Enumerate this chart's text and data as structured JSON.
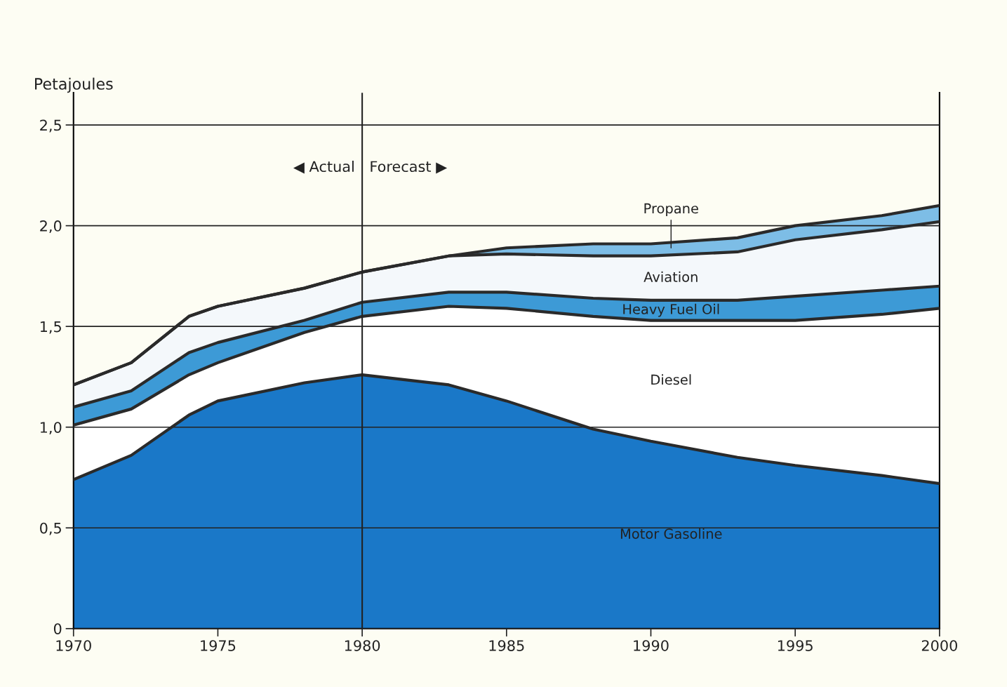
{
  "chart_data": {
    "type": "area",
    "stacked": true,
    "ylabel": "Petajoules",
    "x": [
      1970,
      1972,
      1974,
      1975,
      1978,
      1980,
      1983,
      1985,
      1988,
      1990,
      1993,
      1995,
      1998,
      2000
    ],
    "series": [
      {
        "name": "Motor Gasoline",
        "color": "#1a78c8",
        "values": [
          0.74,
          0.86,
          1.06,
          1.13,
          1.22,
          1.26,
          1.21,
          1.13,
          0.99,
          0.93,
          0.85,
          0.81,
          0.76,
          0.72
        ]
      },
      {
        "name": "Diesel",
        "color": "#ffffff",
        "values": [
          0.27,
          0.23,
          0.2,
          0.19,
          0.25,
          0.29,
          0.39,
          0.46,
          0.56,
          0.6,
          0.68,
          0.72,
          0.8,
          0.87
        ]
      },
      {
        "name": "Heavy Fuel Oil",
        "color": "#3d9ad6",
        "values": [
          0.09,
          0.09,
          0.11,
          0.1,
          0.06,
          0.07,
          0.07,
          0.08,
          0.09,
          0.1,
          0.1,
          0.12,
          0.12,
          0.11
        ]
      },
      {
        "name": "Aviation",
        "color": "#f4f8fb",
        "values": [
          0.11,
          0.14,
          0.18,
          0.18,
          0.16,
          0.15,
          0.18,
          0.19,
          0.21,
          0.22,
          0.24,
          0.28,
          0.3,
          0.32
        ]
      },
      {
        "name": "Propane",
        "color": "#7dbde6",
        "values": [
          0,
          0,
          0,
          0,
          0,
          0,
          0,
          0.03,
          0.06,
          0.06,
          0.07,
          0.07,
          0.07,
          0.08
        ]
      }
    ],
    "xlim": [
      1970,
      2000
    ],
    "ylim": [
      0,
      2.66
    ],
    "xticks": [
      1970,
      1975,
      1980,
      1985,
      1990,
      1995,
      2000
    ],
    "yticks": [
      {
        "value": 0,
        "label": "0"
      },
      {
        "value": 0.5,
        "label": "0,5"
      },
      {
        "value": 1,
        "label": "1,0"
      },
      {
        "value": 1.5,
        "label": "1,5"
      },
      {
        "value": 2,
        "label": "2,0"
      },
      {
        "value": 2.5,
        "label": "2,5"
      }
    ],
    "grid": "y",
    "legend": false,
    "ref_lines": [
      {
        "axis": "x",
        "value": 1980,
        "color": "#222222"
      }
    ],
    "annotations": [
      "◀ Actual",
      "Forecast ▶"
    ]
  }
}
